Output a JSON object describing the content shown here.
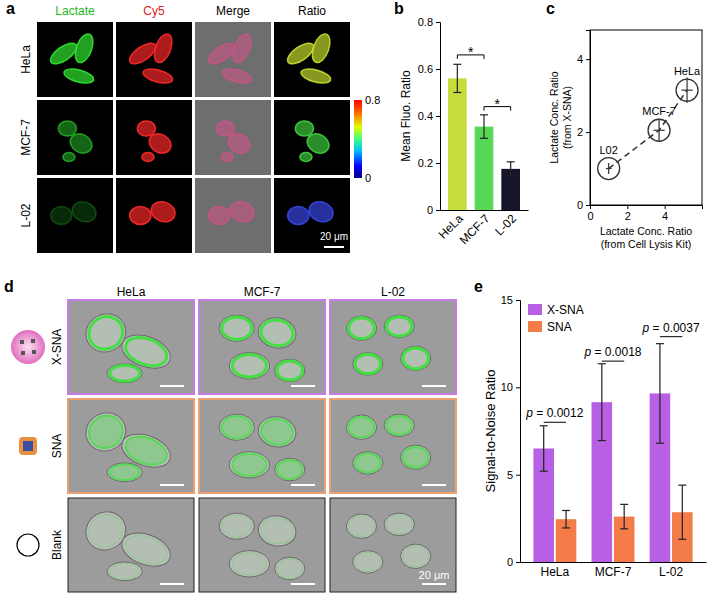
{
  "figure": {
    "panel_labels": [
      "a",
      "b",
      "c",
      "d",
      "e"
    ],
    "panel_a": {
      "columns": [
        "Lactate",
        "Cy5",
        "Merge",
        "Ratio"
      ],
      "column_colors": [
        "#22b822",
        "#e02020",
        "#000000",
        "#000000"
      ],
      "rows": [
        "HeLa",
        "MCF-7",
        "L-02"
      ],
      "colorbar": {
        "range": [
          0,
          0.8
        ],
        "ticks": [
          0.8,
          0
        ]
      },
      "scale_bar": "20 μm"
    },
    "panel_d": {
      "columns": [
        "HeLa",
        "MCF-7",
        "L-02"
      ],
      "rows": [
        "X-SNA",
        "SNA",
        "Blank"
      ],
      "scale_bar": "20 μm"
    }
  },
  "chart_data": [
    {
      "type": "bar",
      "ylabel": "Mean Fluo. Ratio",
      "categories": [
        "HeLa",
        "MCF-7",
        "L-02"
      ],
      "values": [
        0.56,
        0.355,
        0.175
      ],
      "errors": [
        0.06,
        0.05,
        0.03
      ],
      "colors": [
        "#c5dc3a",
        "#57d957",
        "#14142b"
      ],
      "ylim": [
        0,
        0.8
      ],
      "yticks": [
        0,
        0.2,
        0.4,
        0.6,
        0.8
      ],
      "annotations": [
        {
          "text": "*",
          "between": [
            "HeLa",
            "MCF-7"
          ],
          "y": 0.66
        },
        {
          "text": "*",
          "between": [
            "MCF-7",
            "L-02"
          ],
          "y": 0.44
        }
      ]
    },
    {
      "type": "scatter",
      "xlabel": [
        "Lactate Conc. Ratio",
        "(from Cell Lysis Kit)"
      ],
      "ylabel": [
        "Lactate Conc. Ratio",
        "(from X-SNA)"
      ],
      "x": [
        1,
        3.7,
        5.2
      ],
      "y": [
        1,
        2.05,
        3.15
      ],
      "xerr": [
        0.15,
        0.3,
        0.3
      ],
      "yerr": [
        0.15,
        0.3,
        0.35
      ],
      "point_labels": [
        "L02",
        "MCF-7",
        "HeLa"
      ],
      "xlim": [
        0,
        6
      ],
      "xticks": [
        0,
        2,
        4
      ],
      "ylim": [
        0,
        4.8
      ],
      "yticks": [
        0,
        2,
        4
      ],
      "marker": "circle",
      "line_style": "dashed",
      "color": "#333333"
    },
    {
      "type": "bar",
      "ylabel": "Signal-to-Noise Ratio",
      "categories": [
        "HeLa",
        "MCF-7",
        "L-02"
      ],
      "series": [
        {
          "name": "X-SNA",
          "color": "#b760e6",
          "values": [
            6.5,
            9.15,
            9.65
          ],
          "errors": [
            1.3,
            2.2,
            2.85
          ]
        },
        {
          "name": "SNA",
          "color": "#f47c48",
          "values": [
            2.45,
            2.6,
            2.85
          ],
          "errors": [
            0.5,
            0.7,
            1.55
          ]
        }
      ],
      "ylim": [
        0,
        15
      ],
      "yticks": [
        0,
        5,
        10,
        15
      ],
      "legend": "upper left",
      "annotations": [
        {
          "text": "p = 0.0012",
          "category": "HeLa",
          "y": 8.0
        },
        {
          "text": "p = 0.0018",
          "category": "MCF-7",
          "y": 11.5
        },
        {
          "text": "p = 0.0037",
          "category": "L-02",
          "y": 12.9
        }
      ]
    }
  ]
}
